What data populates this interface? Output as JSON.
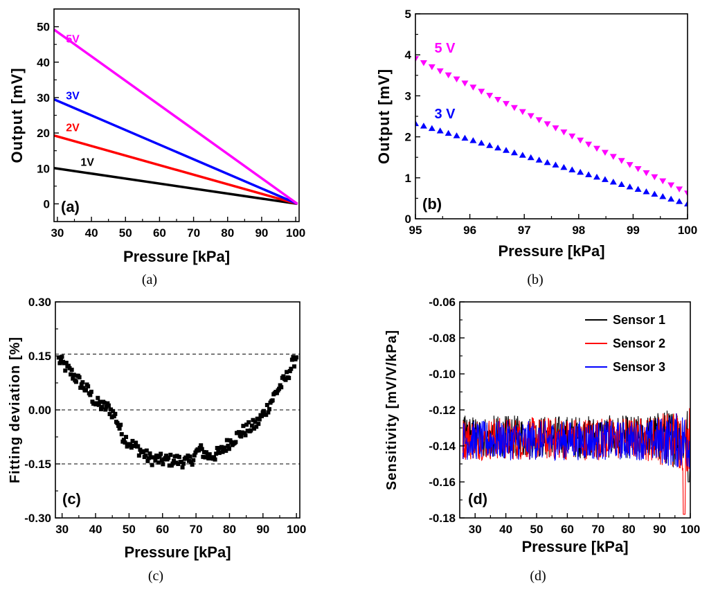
{
  "chart_data": [
    {
      "id": "a",
      "type": "line",
      "panel_label": "(a)",
      "caption": "(a)",
      "xlabel": "Pressure [kPa]",
      "ylabel": "Output [mV]",
      "xlim": [
        29,
        101
      ],
      "ylim": [
        -5,
        55
      ],
      "xticks": [
        30,
        40,
        50,
        60,
        70,
        80,
        90,
        100
      ],
      "yticks": [
        0,
        10,
        20,
        30,
        40,
        50
      ],
      "series": [
        {
          "name": "1V",
          "color": "#000000",
          "x": [
            29,
            100.5
          ],
          "values": [
            10.1,
            0
          ]
        },
        {
          "name": "2V",
          "color": "#ff0000",
          "x": [
            29,
            100.5
          ],
          "values": [
            19.3,
            0
          ]
        },
        {
          "name": "3V",
          "color": "#0000ff",
          "x": [
            29,
            100.5
          ],
          "values": [
            29.5,
            0
          ]
        },
        {
          "name": "5V",
          "color": "#ff00ff",
          "x": [
            29,
            100.5
          ],
          "values": [
            49.2,
            0
          ]
        }
      ],
      "annotations": [
        {
          "text": "5V",
          "color": "#ff00ff",
          "x": 32.5,
          "y": 45.5
        },
        {
          "text": "3V",
          "color": "#0000ff",
          "x": 32.5,
          "y": 29.5
        },
        {
          "text": "2V",
          "color": "#ff0000",
          "x": 32.5,
          "y": 20.5
        },
        {
          "text": "1V",
          "color": "#000000",
          "x": 36.8,
          "y": 10.7
        }
      ]
    },
    {
      "id": "b",
      "type": "scatter",
      "panel_label": "(b)",
      "caption": "(b)",
      "xlabel": "Pressure [kPa]",
      "ylabel": "Output [mV]",
      "xlim": [
        95,
        100
      ],
      "ylim": [
        0,
        5
      ],
      "xticks": [
        95,
        96,
        97,
        98,
        99,
        100
      ],
      "yticks": [
        0,
        1,
        2,
        3,
        4,
        5
      ],
      "series": [
        {
          "name": "5 V",
          "color": "#ff00ff",
          "marker": "triangle-down",
          "x_start": 95.0,
          "x_end": 100.0,
          "y_start": 3.9,
          "y_end": 0.62,
          "n_points": 34
        },
        {
          "name": "3 V",
          "color": "#0000ff",
          "marker": "triangle-up",
          "x_start": 95.0,
          "x_end": 100.0,
          "y_start": 2.33,
          "y_end": 0.37,
          "n_points": 34
        }
      ],
      "annotations": [
        {
          "text": "5 V",
          "color": "#ff00ff",
          "x": 95.35,
          "y": 4.05
        },
        {
          "text": "3 V",
          "color": "#0000ff",
          "x": 95.35,
          "y": 2.45
        }
      ]
    },
    {
      "id": "c",
      "type": "scatter",
      "panel_label": "(c)",
      "caption": "(c)",
      "xlabel": "Pressure [kPa]",
      "ylabel": "Fitting deviation [%]",
      "xlim": [
        28,
        101
      ],
      "ylim": [
        -0.3,
        0.3
      ],
      "xticks": [
        30,
        40,
        50,
        60,
        70,
        80,
        90,
        100
      ],
      "yticks": [
        -0.3,
        -0.15,
        0.0,
        0.15,
        0.3
      ],
      "ytick_labels": [
        "-0.30",
        "-0.15",
        "0.00",
        "0.15",
        "0.30"
      ],
      "reference_lines": [
        0.155,
        0.0,
        -0.15
      ],
      "series": [
        {
          "name": "deviation",
          "color": "#000000",
          "marker": "square",
          "x": [
            29,
            32,
            35,
            38,
            40,
            42,
            44,
            46,
            48,
            50,
            53,
            56,
            60,
            64,
            68,
            71,
            74,
            77,
            80,
            84,
            88,
            91,
            94,
            97,
            100
          ],
          "values": [
            0.14,
            0.11,
            0.08,
            0.05,
            0.02,
            0.01,
            0.005,
            -0.02,
            -0.07,
            -0.09,
            -0.11,
            -0.135,
            -0.14,
            -0.14,
            -0.145,
            -0.11,
            -0.13,
            -0.12,
            -0.09,
            -0.06,
            -0.04,
            0.0,
            0.05,
            0.09,
            0.15
          ]
        }
      ]
    },
    {
      "id": "d",
      "type": "line",
      "panel_label": "(d)",
      "caption": "(d)",
      "xlabel": "Pressure [kPa]",
      "ylabel": "Sensitivity [mV/V/kPa]",
      "xlim": [
        25,
        100
      ],
      "ylim": [
        -0.18,
        -0.06
      ],
      "xticks": [
        30,
        40,
        50,
        60,
        70,
        80,
        90,
        100
      ],
      "yticks": [
        -0.18,
        -0.16,
        -0.14,
        -0.12,
        -0.1,
        -0.08,
        -0.06
      ],
      "ytick_labels": [
        "-0.18",
        "-0.16",
        "-0.14",
        "-0.12",
        "-0.10",
        "-0.08",
        "-0.06"
      ],
      "legend_position": "top-right",
      "series": [
        {
          "name": "Sensor 1",
          "color": "#000000",
          "mean": -0.135,
          "amplitude": 0.012
        },
        {
          "name": "Sensor 2",
          "color": "#ff0000",
          "mean": -0.136,
          "amplitude": 0.012
        },
        {
          "name": "Sensor 3",
          "color": "#0000ff",
          "mean": -0.137,
          "amplitude": 0.011
        }
      ]
    }
  ]
}
